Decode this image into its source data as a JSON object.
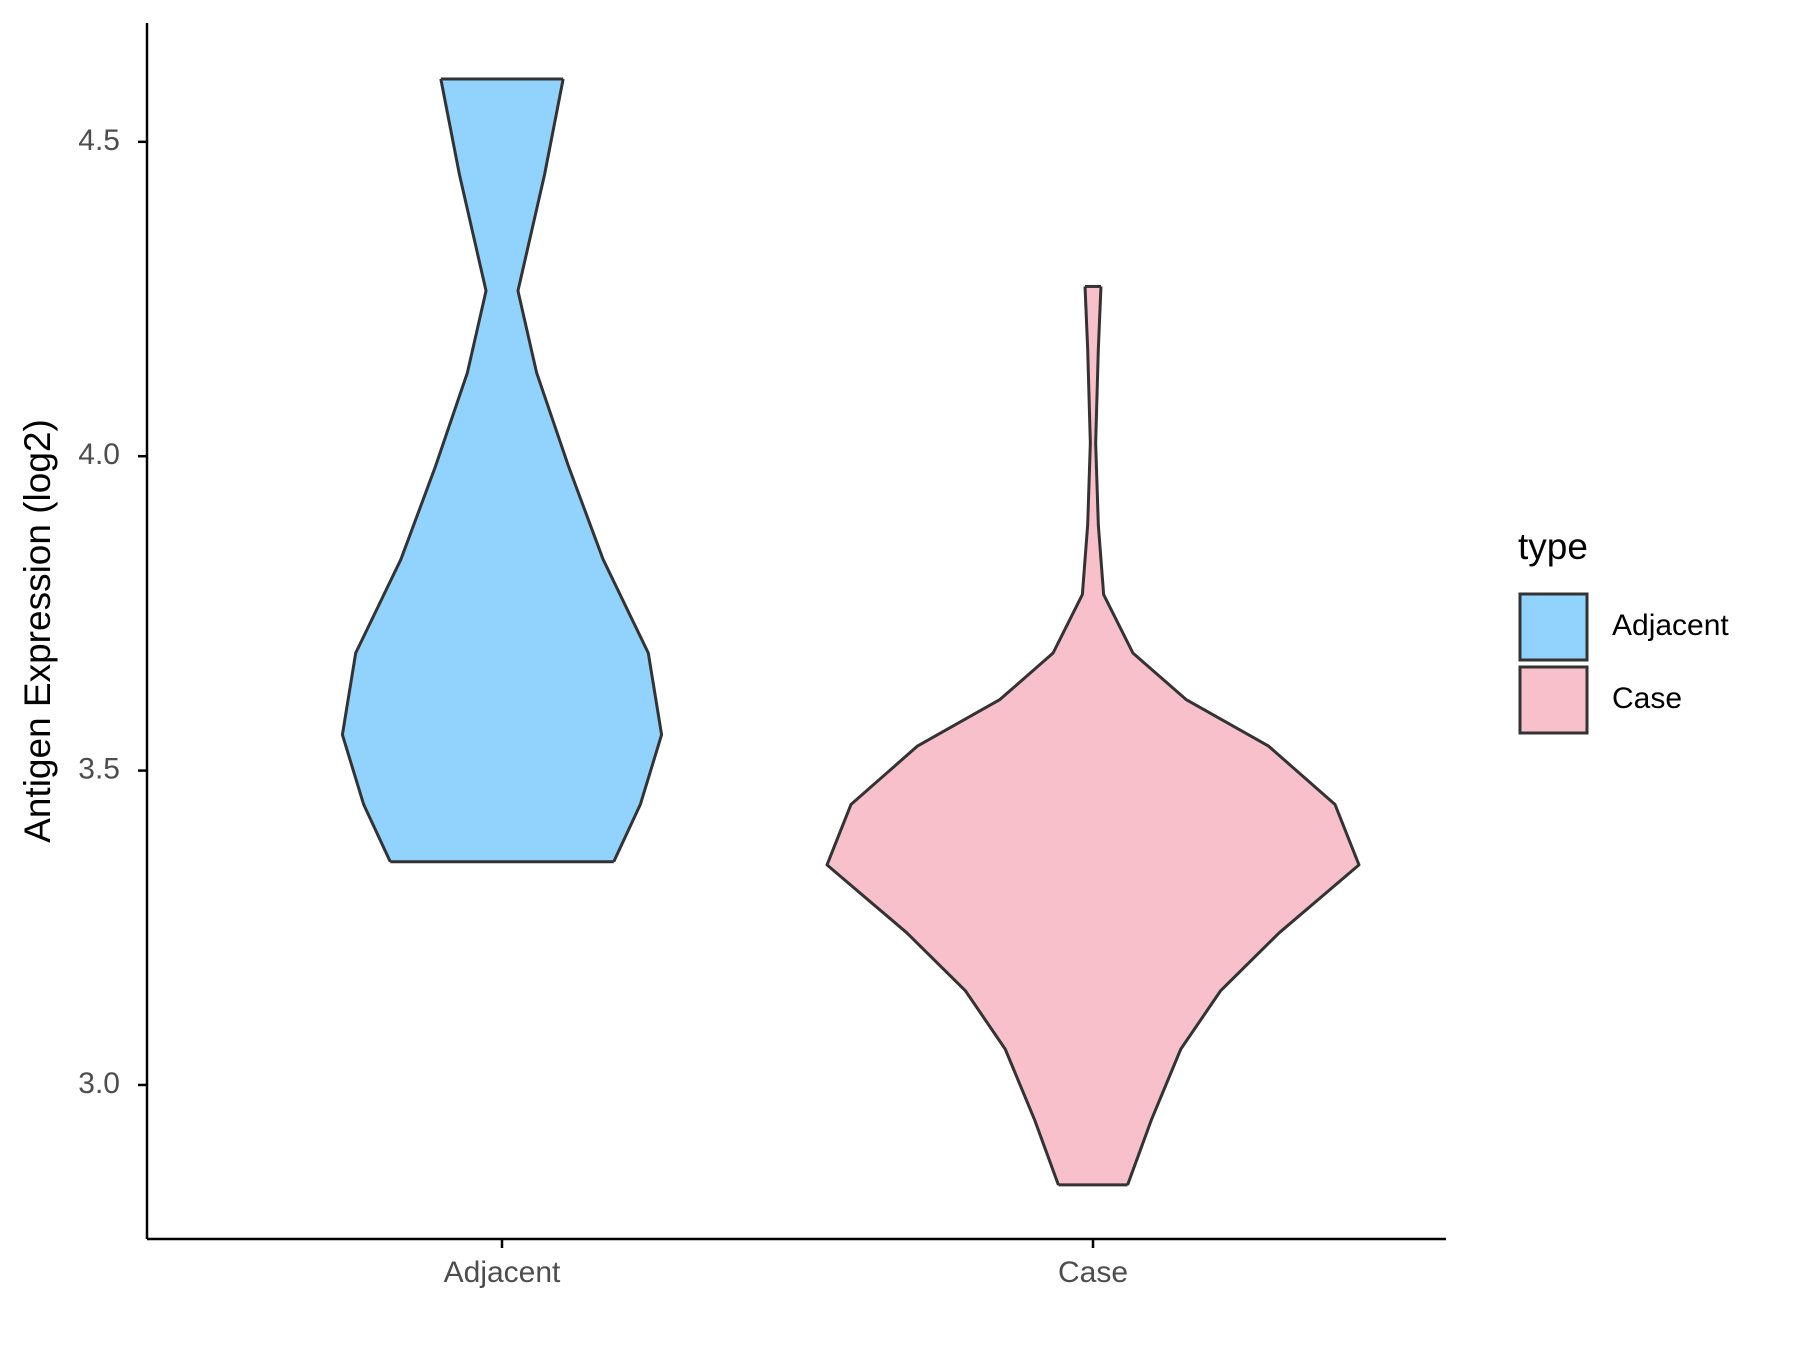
{
  "chart_data": {
    "type": "violin",
    "y_label": "Antigen Expression (log2)",
    "categories": [
      "Adjacent",
      "Case"
    ],
    "ylim": [
      2.755,
      4.689
    ],
    "yticks": [
      {
        "value": 3,
        "label": "3.0"
      },
      3.5,
      {
        "value": 4,
        "label": "4.0"
      },
      4.5
    ],
    "legend_title": "type",
    "legend": "right",
    "series": [
      {
        "name": "Adjacent",
        "color": "#91d3fd",
        "y": [
          4.6,
          4.448,
          4.263,
          4.133,
          3.984,
          3.836,
          3.687,
          3.557,
          3.446,
          3.355
        ],
        "width": [
          0.23,
          0.16,
          0.06,
          0.13,
          0.25,
          0.38,
          0.55,
          0.6,
          0.52,
          0.42
        ]
      },
      {
        "name": "Case",
        "color": "#f7c0cb",
        "y": [
          4.27,
          4.17,
          4.021,
          3.891,
          3.78,
          3.687,
          3.613,
          3.539,
          3.446,
          3.35,
          3.242,
          3.15,
          3.057,
          2.945,
          2.841
        ],
        "width": [
          0.03,
          0.02,
          0.01,
          0.02,
          0.04,
          0.15,
          0.35,
          0.66,
          0.91,
          1.0,
          0.7,
          0.48,
          0.33,
          0.22,
          0.13
        ]
      }
    ]
  }
}
